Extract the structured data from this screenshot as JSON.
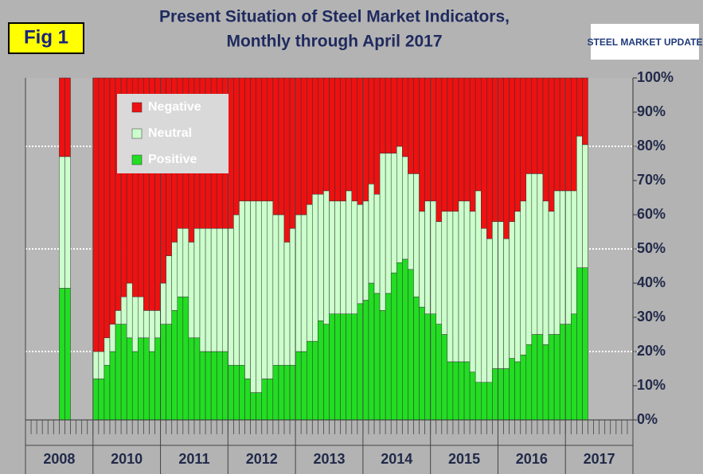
{
  "chart_data": {
    "type": "stacked_bar",
    "fig_label": "Fig 1",
    "title": "Present Situation of Steel Market Indicators,",
    "subtitle": "Monthly through April 2017",
    "logo": "STEEL MARKET UPDATE",
    "categories": [
      "2008",
      "2010",
      "2011",
      "2012",
      "2013",
      "2014",
      "2015",
      "2016",
      "2017"
    ],
    "series": [
      {
        "name": "Positive",
        "color": "#22dd22",
        "values": [
          [
            null,
            null,
            null,
            null,
            null,
            null,
            38.5,
            38.5,
            null,
            null,
            null,
            null
          ],
          [
            12,
            12,
            16,
            20,
            28,
            28,
            24,
            20,
            24,
            24,
            20,
            24
          ],
          [
            28,
            28,
            32,
            36,
            36,
            24,
            24,
            20,
            20,
            20,
            20,
            20
          ],
          [
            16,
            16,
            16,
            12,
            8,
            8,
            12,
            12,
            16,
            16,
            16,
            16
          ],
          [
            20,
            20,
            23,
            23,
            29,
            28,
            31,
            31,
            31,
            31,
            31,
            34
          ],
          [
            35,
            40,
            37,
            32,
            37,
            43,
            46,
            47,
            44,
            36,
            33,
            31
          ],
          [
            31,
            28,
            25,
            17,
            17,
            17,
            17,
            14,
            11,
            11,
            11,
            15
          ],
          [
            15,
            15,
            18,
            17,
            19,
            22,
            25,
            25,
            22,
            25,
            25,
            28
          ],
          [
            28,
            31,
            44.5,
            44.5,
            null,
            null,
            null,
            null,
            null,
            null,
            null,
            null
          ]
        ]
      },
      {
        "name": "Neutral",
        "color": "#ccffcc",
        "values": [
          [
            null,
            null,
            null,
            null,
            null,
            null,
            38.5,
            38.5,
            null,
            null,
            null,
            null
          ],
          [
            8,
            8,
            8,
            8,
            4,
            8,
            16,
            16,
            12,
            8,
            12,
            8
          ],
          [
            12,
            20,
            20,
            20,
            20,
            28,
            32,
            36,
            36,
            36,
            36,
            36
          ],
          [
            40,
            44,
            48,
            52,
            56,
            56,
            52,
            52,
            44,
            44,
            36,
            40
          ],
          [
            40,
            40,
            40,
            43,
            37,
            39,
            33,
            33,
            33,
            36,
            33,
            29
          ],
          [
            29,
            29,
            29,
            46,
            41,
            35,
            34,
            30,
            28,
            36,
            28,
            33
          ],
          [
            33,
            30,
            36,
            44,
            44,
            47,
            47,
            47,
            56,
            45,
            42,
            43
          ],
          [
            43,
            38,
            40,
            44,
            45,
            50,
            47,
            47,
            42,
            36,
            42,
            39
          ],
          [
            39,
            36,
            38.5,
            36,
            null,
            null,
            null,
            null,
            null,
            null,
            null,
            null
          ]
        ]
      },
      {
        "name": "Negative",
        "color": "#ee1111",
        "values": [
          [
            null,
            null,
            null,
            null,
            null,
            null,
            23,
            23,
            null,
            null,
            null,
            null
          ],
          [
            80,
            80,
            76,
            72,
            68,
            64,
            60,
            64,
            64,
            68,
            68,
            68
          ],
          [
            60,
            52,
            48,
            44,
            44,
            48,
            44,
            44,
            44,
            44,
            44,
            44
          ],
          [
            44,
            40,
            36,
            36,
            36,
            36,
            36,
            36,
            40,
            40,
            48,
            44
          ],
          [
            40,
            40,
            37,
            34,
            34,
            33,
            36,
            36,
            36,
            33,
            36,
            37
          ],
          [
            36,
            31,
            34,
            22,
            22,
            22,
            20,
            23,
            28,
            28,
            39,
            36
          ],
          [
            36,
            42,
            39,
            39,
            39,
            36,
            36,
            39,
            33,
            44,
            47,
            42
          ],
          [
            42,
            47,
            42,
            39,
            36,
            28,
            28,
            28,
            36,
            39,
            33,
            33
          ],
          [
            33,
            33,
            17,
            19.5,
            null,
            null,
            null,
            null,
            null,
            null,
            null,
            null
          ]
        ]
      }
    ],
    "ylim": [
      0,
      100
    ],
    "yticks": [
      {
        "value": 0,
        "label": "0%"
      },
      {
        "value": 10,
        "label": "10%"
      },
      {
        "value": 20,
        "label": "20%"
      },
      {
        "value": 30,
        "label": "30%"
      },
      {
        "value": 40,
        "label": "40%"
      },
      {
        "value": 50,
        "label": "50%"
      },
      {
        "value": 60,
        "label": "60%"
      },
      {
        "value": 70,
        "label": "70%"
      },
      {
        "value": 80,
        "label": "80%"
      },
      {
        "value": 90,
        "label": "90%"
      },
      {
        "value": 100,
        "label": "100%"
      }
    ],
    "reference_lines": [
      20,
      50,
      80
    ],
    "legend": "upper left"
  }
}
